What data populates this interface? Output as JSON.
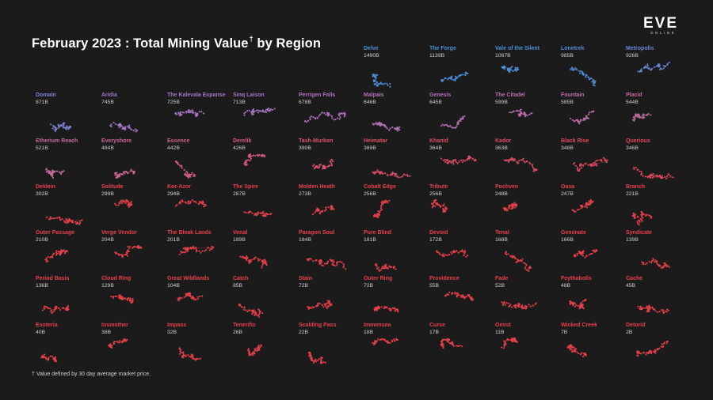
{
  "header": {
    "title": "February 2023 : Total Mining Value",
    "title_mark": "†",
    "title_suffix": "by Region"
  },
  "logo": {
    "main": "EVE",
    "sub": "ONLINE"
  },
  "footnote": "† Value defined by 30 day average market price.",
  "chart_data": {
    "type": "small-multiples",
    "title": "February 2023 : Total Mining Value† by Region",
    "unit": "B",
    "color_scale": {
      "high": "#4a90d9",
      "mid": "#9a7ad0",
      "low": "#e8404a"
    },
    "regions": [
      {
        "name": "Delve",
        "value": 1490,
        "label": "1490B"
      },
      {
        "name": "The Forge",
        "value": 1139,
        "label": "1139B"
      },
      {
        "name": "Vale of the Silent",
        "value": 1067,
        "label": "1067B"
      },
      {
        "name": "Lonetrek",
        "value": 985,
        "label": "985B"
      },
      {
        "name": "Metropolis",
        "value": 926,
        "label": "926B"
      },
      {
        "name": "Domain",
        "value": 871,
        "label": "871B"
      },
      {
        "name": "Aridia",
        "value": 745,
        "label": "745B"
      },
      {
        "name": "The Kalevala Expanse",
        "value": 725,
        "label": "725B"
      },
      {
        "name": "Sinq Laison",
        "value": 713,
        "label": "713B"
      },
      {
        "name": "Perrigen Falls",
        "value": 678,
        "label": "678B"
      },
      {
        "name": "Malpais",
        "value": 646,
        "label": "646B"
      },
      {
        "name": "Genesis",
        "value": 645,
        "label": "645B"
      },
      {
        "name": "The Citadel",
        "value": 599,
        "label": "599B"
      },
      {
        "name": "Fountain",
        "value": 585,
        "label": "585B"
      },
      {
        "name": "Placid",
        "value": 544,
        "label": "544B"
      },
      {
        "name": "Etherium Reach",
        "value": 521,
        "label": "521B"
      },
      {
        "name": "Everyshore",
        "value": 484,
        "label": "484B"
      },
      {
        "name": "Essence",
        "value": 442,
        "label": "442B"
      },
      {
        "name": "Derelik",
        "value": 426,
        "label": "426B"
      },
      {
        "name": "Tash-Murkon",
        "value": 390,
        "label": "390B"
      },
      {
        "name": "Heimatar",
        "value": 369,
        "label": "369B"
      },
      {
        "name": "Khanid",
        "value": 364,
        "label": "364B"
      },
      {
        "name": "Kador",
        "value": 363,
        "label": "363B"
      },
      {
        "name": "Black Rise",
        "value": 348,
        "label": "348B"
      },
      {
        "name": "Querious",
        "value": 346,
        "label": "346B"
      },
      {
        "name": "Deklein",
        "value": 302,
        "label": "302B"
      },
      {
        "name": "Solitude",
        "value": 299,
        "label": "299B"
      },
      {
        "name": "Kor-Azor",
        "value": 294,
        "label": "294B"
      },
      {
        "name": "The Spire",
        "value": 287,
        "label": "287B"
      },
      {
        "name": "Molden Heath",
        "value": 273,
        "label": "273B"
      },
      {
        "name": "Cobalt Edge",
        "value": 256,
        "label": "256B"
      },
      {
        "name": "Tribute",
        "value": 256,
        "label": "256B"
      },
      {
        "name": "Pochven",
        "value": 248,
        "label": "248B"
      },
      {
        "name": "Oasa",
        "value": 247,
        "label": "247B"
      },
      {
        "name": "Branch",
        "value": 221,
        "label": "221B"
      },
      {
        "name": "Outer Passage",
        "value": 210,
        "label": "210B"
      },
      {
        "name": "Verge Vendor",
        "value": 204,
        "label": "204B"
      },
      {
        "name": "The Bleak Lands",
        "value": 201,
        "label": "201B"
      },
      {
        "name": "Venal",
        "value": 189,
        "label": "189B"
      },
      {
        "name": "Paragon Soul",
        "value": 184,
        "label": "184B"
      },
      {
        "name": "Pure Blind",
        "value": 181,
        "label": "181B"
      },
      {
        "name": "Devoid",
        "value": 172,
        "label": "172B"
      },
      {
        "name": "Tenal",
        "value": 168,
        "label": "168B"
      },
      {
        "name": "Geminate",
        "value": 166,
        "label": "166B"
      },
      {
        "name": "Syndicate",
        "value": 139,
        "label": "139B"
      },
      {
        "name": "Period Basis",
        "value": 136,
        "label": "136B"
      },
      {
        "name": "Cloud Ring",
        "value": 129,
        "label": "129B"
      },
      {
        "name": "Great Wildlands",
        "value": 104,
        "label": "104B"
      },
      {
        "name": "Catch",
        "value": 85,
        "label": "85B"
      },
      {
        "name": "Stain",
        "value": 72,
        "label": "72B"
      },
      {
        "name": "Outer Ring",
        "value": 72,
        "label": "72B"
      },
      {
        "name": "Providence",
        "value": 55,
        "label": "55B"
      },
      {
        "name": "Fade",
        "value": 52,
        "label": "52B"
      },
      {
        "name": "Feythabolis",
        "value": 48,
        "label": "48B"
      },
      {
        "name": "Cache",
        "value": 45,
        "label": "45B"
      },
      {
        "name": "Esoteria",
        "value": 40,
        "label": "40B"
      },
      {
        "name": "Insmother",
        "value": 38,
        "label": "38B"
      },
      {
        "name": "Impass",
        "value": 32,
        "label": "32B"
      },
      {
        "name": "Tenerifis",
        "value": 26,
        "label": "26B"
      },
      {
        "name": "Scalding Pass",
        "value": 22,
        "label": "22B"
      },
      {
        "name": "Immensea",
        "value": 18,
        "label": "18B"
      },
      {
        "name": "Curse",
        "value": 17,
        "label": "17B"
      },
      {
        "name": "Omist",
        "value": 11,
        "label": "11B"
      },
      {
        "name": "Wicked Creek",
        "value": 7,
        "label": "7B"
      },
      {
        "name": "Detorid",
        "value": 2,
        "label": "2B"
      }
    ]
  }
}
